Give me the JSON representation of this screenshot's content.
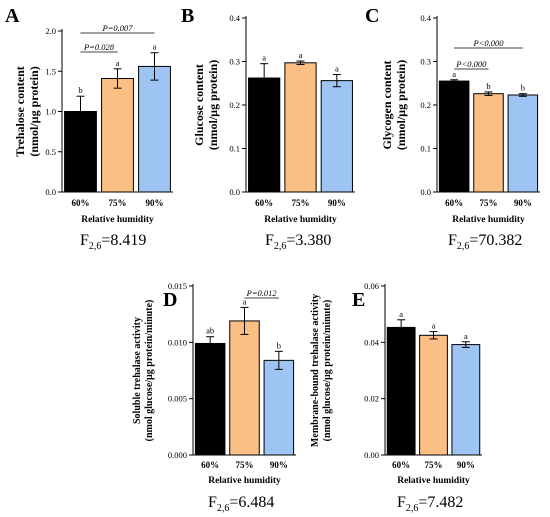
{
  "colors": {
    "60%": "#000000",
    "75%": "#fbbf84",
    "90%": "#9ec4f4"
  },
  "chart_data": [
    {
      "type": "bar",
      "panel": "A",
      "categories": [
        "60%",
        "75%",
        "90%"
      ],
      "values": [
        1.0,
        1.41,
        1.56
      ],
      "errors": [
        0.19,
        0.12,
        0.17
      ],
      "letters": [
        "b",
        "a",
        "a"
      ],
      "xlabel": "Relative humidity",
      "ylabel_line1": "Trehalose content",
      "ylabel_line2": "(nmol/µg protein)",
      "ylim": [
        0,
        2.0
      ],
      "yticks": [
        "0.0",
        "0.5",
        "1.0",
        "1.5",
        "2.0"
      ],
      "ytick_values": [
        0,
        0.5,
        1.0,
        1.5,
        2.0
      ],
      "comparisons": [
        {
          "from": 0,
          "to": 1,
          "label": "P=0.028"
        },
        {
          "from": 0,
          "to": 2,
          "label": "P=0.007"
        }
      ],
      "fstat": {
        "base": "F",
        "sub": "2,6",
        "value": "=8.419"
      }
    },
    {
      "type": "bar",
      "panel": "B",
      "categories": [
        "60%",
        "75%",
        "90%"
      ],
      "values": [
        0.262,
        0.297,
        0.256
      ],
      "errors": [
        0.033,
        0.004,
        0.014
      ],
      "letters": [
        "a",
        "a",
        "a"
      ],
      "xlabel": "Relative humidity",
      "ylabel_line1": "Glucose content",
      "ylabel_line2": "(nmol/µg protein)",
      "ylim": [
        0,
        0.4
      ],
      "yticks": [
        "0.0",
        "0.1",
        "0.2",
        "0.3",
        "0.4"
      ],
      "ytick_values": [
        0,
        0.1,
        0.2,
        0.3,
        0.4
      ],
      "comparisons": [],
      "fstat": {
        "base": "F",
        "sub": "2,6",
        "value": "=3.380"
      }
    },
    {
      "type": "bar",
      "panel": "C",
      "categories": [
        "60%",
        "75%",
        "90%"
      ],
      "values": [
        0.255,
        0.226,
        0.223
      ],
      "errors": [
        0.003,
        0.004,
        0.003
      ],
      "letters": [
        "a",
        "b",
        "b"
      ],
      "xlabel": "Relative humidity",
      "ylabel_line1": "Glycogen content",
      "ylabel_line2": "(nmol/µg protein)",
      "ylim": [
        0,
        0.4
      ],
      "yticks": [
        "0.0",
        "0.1",
        "0.2",
        "0.3",
        "0.4"
      ],
      "ytick_values": [
        0,
        0.1,
        0.2,
        0.3,
        0.4
      ],
      "comparisons": [
        {
          "from": 0,
          "to": 1,
          "label": "P<0.000"
        },
        {
          "from": 0,
          "to": 2,
          "label": "P<0.000"
        }
      ],
      "fstat": {
        "base": "F",
        "sub": "2,6",
        "value": "=70.382"
      }
    },
    {
      "type": "bar",
      "panel": "D",
      "categories": [
        "60%",
        "75%",
        "90%"
      ],
      "values": [
        0.0099,
        0.0119,
        0.0084
      ],
      "errors": [
        0.0006,
        0.0012,
        0.0008
      ],
      "letters": [
        "ab",
        "a",
        "b"
      ],
      "xlabel": "Relative humidity",
      "ylabel_line1": "Soluble trehalase activity",
      "ylabel_line2": "(nmol glucose/µg protein/minute)",
      "ylim": [
        0,
        0.015
      ],
      "yticks": [
        "0.000",
        "0.005",
        "0.010",
        "0.015"
      ],
      "ytick_values": [
        0,
        0.005,
        0.01,
        0.015
      ],
      "comparisons": [
        {
          "from": 1,
          "to": 2,
          "label": "P=0.012"
        }
      ],
      "fstat": {
        "base": "F",
        "sub": "2,6",
        "value": "=6.484"
      }
    },
    {
      "type": "bar",
      "panel": "E",
      "categories": [
        "60%",
        "75%",
        "90%"
      ],
      "values": [
        0.0453,
        0.0425,
        0.0392
      ],
      "errors": [
        0.0027,
        0.0013,
        0.001
      ],
      "letters": [
        "a",
        "a",
        "a"
      ],
      "xlabel": "Relative humidity",
      "ylabel_line1": "Membrane-bound trehalase activity",
      "ylabel_line2": "(nmol glucose/µg protein/minute)",
      "ylim": [
        0,
        0.06
      ],
      "yticks": [
        "0.00",
        "0.02",
        "0.04",
        "0.06"
      ],
      "ytick_values": [
        0,
        0.02,
        0.04,
        0.06
      ],
      "comparisons": [],
      "fstat": {
        "base": "F",
        "sub": "2,6",
        "value": "=7.482"
      }
    }
  ]
}
